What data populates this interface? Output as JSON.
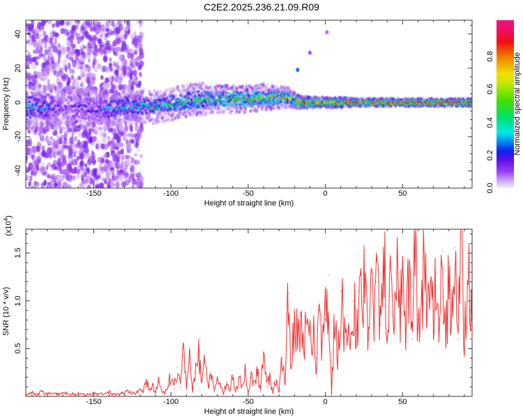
{
  "title": "C2E2.2025.236.21.09.R09",
  "chart_data": [
    {
      "type": "heatmap",
      "title": "C2E2.2025.236.21.09.R09",
      "xlabel": "Height of straight line (km)",
      "ylabel": "Frequency (Hz)",
      "xlim": [
        -194,
        95
      ],
      "ylim": [
        -50,
        48
      ],
      "xticks": [
        -150,
        -100,
        -50,
        0,
        50
      ],
      "yticks": [
        -40,
        -20,
        0,
        20,
        40
      ],
      "colorbar": {
        "label": "Normalized spectral amplitude",
        "range": [
          0,
          1
        ],
        "ticks": [
          "0.0",
          "0.2",
          "0.4",
          "0.6",
          "0.8"
        ]
      },
      "noise_region_km": [
        -194,
        -122
      ],
      "ridge_columns": [
        "height_km",
        "frequency_hz",
        "amplitude",
        "spread_hz"
      ],
      "ridge": [
        [
          -190,
          -3,
          0.35,
          8
        ],
        [
          -180,
          -3,
          0.3,
          8
        ],
        [
          -170,
          -3,
          0.15,
          8
        ],
        [
          -160,
          -3,
          0.2,
          8
        ],
        [
          -150,
          -4,
          0.2,
          7
        ],
        [
          -142,
          -4,
          0.3,
          6
        ],
        [
          -135,
          -3,
          0.4,
          6
        ],
        [
          -125,
          -2,
          0.35,
          6
        ],
        [
          -115,
          -2,
          0.4,
          6
        ],
        [
          -110,
          -3,
          0.45,
          6
        ],
        [
          -100,
          -1,
          0.45,
          6
        ],
        [
          -90,
          1,
          0.5,
          6
        ],
        [
          -80,
          2,
          0.5,
          6
        ],
        [
          -70,
          2,
          0.55,
          5
        ],
        [
          -60,
          2,
          0.6,
          5
        ],
        [
          -50,
          2,
          0.6,
          5
        ],
        [
          -40,
          3,
          0.6,
          5
        ],
        [
          -30,
          3,
          0.65,
          4
        ],
        [
          -25,
          3,
          0.6,
          4
        ],
        [
          -20,
          1,
          0.7,
          3
        ],
        [
          -15,
          0,
          0.8,
          2.5
        ],
        [
          -10,
          0,
          0.85,
          2
        ],
        [
          0,
          0,
          0.85,
          2
        ],
        [
          10,
          0,
          0.9,
          2
        ],
        [
          20,
          0,
          0.9,
          1.5
        ],
        [
          30,
          0,
          0.95,
          1.5
        ],
        [
          40,
          0,
          0.95,
          1.5
        ],
        [
          50,
          0,
          0.95,
          1.5
        ],
        [
          60,
          0,
          0.95,
          1.5
        ],
        [
          70,
          0,
          0.95,
          1.5
        ],
        [
          80,
          0,
          0.95,
          1.5
        ],
        [
          94,
          0,
          0.95,
          1.5
        ]
      ],
      "isolated_points": [
        [
          -18,
          19,
          0.25
        ],
        [
          -10,
          29,
          0.1
        ],
        [
          1,
          41,
          0.08
        ]
      ]
    },
    {
      "type": "line",
      "xlabel": "Height of straight line (km)",
      "ylabel": "SNR (10 * v/v)",
      "yscale_label": "(x10",
      "yscale_exp": "4",
      "yscale_close": ")",
      "xlim": [
        -194,
        95
      ],
      "ylim": [
        0,
        1.75
      ],
      "xticks": [
        -150,
        -100,
        -50,
        0,
        50
      ],
      "yticks": [
        "0.5",
        "1.0",
        "1.5"
      ],
      "color": "#ee3333",
      "x_start": -194,
      "x_step": 2,
      "values": [
        0.03,
        0.02,
        0.04,
        0.02,
        0.03,
        0.06,
        0.02,
        0.03,
        0.04,
        0.02,
        0.03,
        0.02,
        0.04,
        0.03,
        0.02,
        0.03,
        0.02,
        0.04,
        0.03,
        0.02,
        0.03,
        0.02,
        0.04,
        0.02,
        0.03,
        0.02,
        0.03,
        0.05,
        0.02,
        0.03,
        0.02,
        0.04,
        0.03,
        0.06,
        0.03,
        0.04,
        0.05,
        0.08,
        0.04,
        0.18,
        0.06,
        0.12,
        0.05,
        0.15,
        0.07,
        0.03,
        0.12,
        0.22,
        0.08,
        0.3,
        0.1,
        0.42,
        0.12,
        0.35,
        0.06,
        0.25,
        0.43,
        0.15,
        0.35,
        0.1,
        0.22,
        0.05,
        0.18,
        0.1,
        0.02,
        0.15,
        0.08,
        0.22,
        0.06,
        0.2,
        0.1,
        0.25,
        0.05,
        0.2,
        0.12,
        0.28,
        0.05,
        0.48,
        0.1,
        0.2,
        0.03,
        0.18,
        0.05,
        0.4,
        0.12,
        1.08,
        0.3,
        0.92,
        0.55,
        0.75,
        0.45,
        0.85,
        0.6,
        0.72,
        0.4,
        0.9,
        0.55,
        0.8,
        1.27,
        0.02,
        0.85,
        0.4,
        1.1,
        0.6,
        0.85,
        0.5,
        1.0,
        0.7,
        1.1,
        0.8,
        1.53,
        0.6,
        1.3,
        0.9,
        1.2,
        0.75,
        1.35,
        0.95,
        1.05,
        0.85,
        1.3,
        0.9,
        1.1,
        0.7,
        1.2,
        0.6,
        1.52,
        0.85,
        1.0,
        1.44,
        0.75,
        1.25,
        0.9,
        1.3,
        0.7,
        1.53,
        0.55,
        1.4,
        0.9,
        1.56,
        0.6,
        1.75,
        0.5,
        1.3,
        1.0
      ]
    }
  ]
}
